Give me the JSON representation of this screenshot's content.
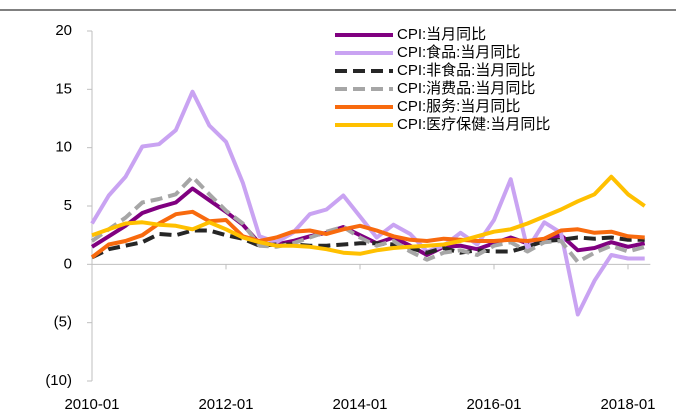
{
  "chart_data": {
    "type": "line",
    "x": [
      "2010-01",
      "2010-04",
      "2010-07",
      "2010-10",
      "2011-01",
      "2011-04",
      "2011-07",
      "2011-10",
      "2012-01",
      "2012-04",
      "2012-07",
      "2012-10",
      "2013-01",
      "2013-04",
      "2013-07",
      "2013-10",
      "2014-01",
      "2014-04",
      "2014-07",
      "2014-10",
      "2015-01",
      "2015-04",
      "2015-07",
      "2015-10",
      "2016-01",
      "2016-04",
      "2016-07",
      "2016-10",
      "2017-01",
      "2017-04",
      "2017-07",
      "2017-10",
      "2018-01",
      "2018-04"
    ],
    "series": [
      {
        "name": "CPI:当月同比",
        "color": "#800080",
        "dash": false,
        "values": [
          1.5,
          2.4,
          3.3,
          4.4,
          4.9,
          5.3,
          6.5,
          5.5,
          4.5,
          3.4,
          1.8,
          1.7,
          2.0,
          2.4,
          2.7,
          3.2,
          2.5,
          1.8,
          2.3,
          1.6,
          0.8,
          1.5,
          1.6,
          1.3,
          1.8,
          2.3,
          1.8,
          2.1,
          2.5,
          1.2,
          1.4,
          1.9,
          1.5,
          1.8
        ]
      },
      {
        "name": "CPI:食品:当月同比",
        "color": "#c9a3f2",
        "dash": false,
        "values": [
          3.5,
          5.9,
          7.5,
          10.1,
          10.3,
          11.5,
          14.8,
          11.9,
          10.5,
          7.0,
          2.4,
          1.9,
          2.7,
          4.3,
          4.7,
          5.9,
          4.1,
          2.3,
          3.4,
          2.6,
          1.1,
          1.6,
          2.7,
          1.7,
          3.8,
          7.3,
          1.3,
          3.6,
          2.7,
          -4.3,
          -1.4,
          0.8,
          0.5,
          0.5
        ]
      },
      {
        "name": "CPI:非食品:当月同比",
        "color": "#262626",
        "dash": true,
        "values": [
          0.6,
          1.3,
          1.6,
          1.9,
          2.6,
          2.5,
          2.9,
          2.9,
          2.5,
          2.2,
          1.6,
          1.7,
          1.7,
          1.6,
          1.6,
          1.7,
          1.8,
          1.8,
          1.7,
          1.4,
          1.0,
          1.4,
          1.0,
          1.2,
          1.1,
          1.1,
          1.5,
          2.0,
          2.1,
          2.3,
          2.2,
          2.3,
          2.1,
          2.1
        ]
      },
      {
        "name": "CPI:消费品:当月同比",
        "color": "#a6a6a6",
        "dash": true,
        "values": [
          2.0,
          3.0,
          4.0,
          5.3,
          5.6,
          6.0,
          7.5,
          6.0,
          4.6,
          3.5,
          1.6,
          1.5,
          1.8,
          2.3,
          2.8,
          3.2,
          2.3,
          1.6,
          2.0,
          1.1,
          0.4,
          1.0,
          1.2,
          0.8,
          1.6,
          1.9,
          1.1,
          1.9,
          2.0,
          0.2,
          1.0,
          1.6,
          1.1,
          1.5
        ]
      },
      {
        "name": "CPI:服务:当月同比",
        "color": "#f86a0e",
        "dash": false,
        "values": [
          0.6,
          1.7,
          2.0,
          2.5,
          3.5,
          4.3,
          4.5,
          3.7,
          3.8,
          2.4,
          2.0,
          2.3,
          2.8,
          2.9,
          2.6,
          3.0,
          3.3,
          2.9,
          2.4,
          2.1,
          2.0,
          2.2,
          2.1,
          2.0,
          2.0,
          2.1,
          2.0,
          2.2,
          2.9,
          3.0,
          2.7,
          2.8,
          2.4,
          2.3
        ]
      },
      {
        "name": "CPI:医疗保健:当月同比",
        "color": "#ffc000",
        "dash": false,
        "values": [
          2.5,
          3.0,
          3.5,
          3.6,
          3.4,
          3.3,
          3.0,
          3.6,
          3.0,
          2.3,
          1.9,
          1.6,
          1.6,
          1.5,
          1.3,
          1.0,
          0.9,
          1.2,
          1.4,
          1.5,
          1.6,
          1.7,
          2.0,
          2.4,
          2.8,
          3.0,
          3.5,
          4.1,
          4.7,
          5.4,
          6.0,
          7.5,
          6.0,
          5.0
        ]
      }
    ],
    "xlim": [
      "2010-01",
      "2018-05"
    ],
    "xticks": [
      "2010-01",
      "2012-01",
      "2014-01",
      "2016-01",
      "2018-01"
    ],
    "ylim": [
      -10,
      20
    ],
    "yticks": [
      {
        "value": -10,
        "label": "(10)"
      },
      {
        "value": -5,
        "label": "(5)"
      },
      0,
      5,
      10,
      15,
      20
    ],
    "negative_tick_color": "#ff0000",
    "legend": "top-right"
  }
}
